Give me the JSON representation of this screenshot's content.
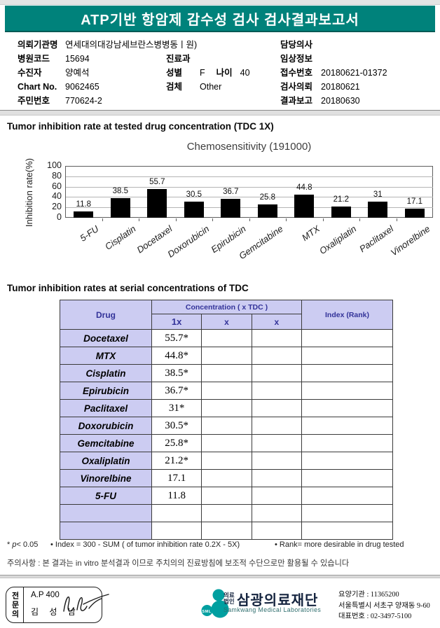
{
  "header": {
    "title": "ATP기반 항암제 감수성 검사 검사결과보고서"
  },
  "patient": {
    "left": [
      {
        "label": "의뢰기관명",
        "value": "연세대의대강남세브란스병병동ㅣ원)"
      },
      {
        "label": "병원코드",
        "value": "15694"
      },
      {
        "label": "수진자",
        "value": "양예석"
      },
      {
        "label": "Chart No.",
        "value": "9062465"
      },
      {
        "label": "주민번호",
        "value": "770624-2"
      }
    ],
    "middle": [
      {
        "label": "진료과",
        "value": ""
      },
      {
        "label": "성별",
        "value": "F",
        "label2": "나이",
        "value2": "40"
      },
      {
        "label": "검체",
        "value": "Other"
      }
    ],
    "right": [
      {
        "label": "담당의사",
        "value": ""
      },
      {
        "label": "임상정보",
        "value": ""
      },
      {
        "label": "접수번호",
        "value": "20180621-01372"
      },
      {
        "label": "검사의뢰",
        "value": "20180621"
      },
      {
        "label": "결과보고",
        "value": "20180630"
      }
    ]
  },
  "section1": {
    "title": "Tumor inhibition rate at tested drug concentration (TDC 1X)"
  },
  "section2": {
    "title": "Tumor inhibition rates at serial concentrations of TDC"
  },
  "chart_data": {
    "type": "bar",
    "title": "Chemosensitivity (191000)",
    "ylabel": "Inhibition rate(%)",
    "xlabel": "",
    "categories": [
      "5-FU",
      "Cisplatin",
      "Docetaxel",
      "Doxorubicin",
      "Epirubicin",
      "Gemcitabine",
      "MTX",
      "Oxaliplatin",
      "Paclitaxel",
      "Vinorelbine"
    ],
    "values": [
      11.8,
      38.5,
      55.7,
      30.5,
      36.7,
      25.8,
      44.8,
      21.2,
      31,
      17.1
    ],
    "ylim": [
      0,
      100
    ],
    "yticks": [
      0,
      20,
      40,
      60,
      80,
      100
    ],
    "grid": true,
    "legend": false,
    "bar_color": "#000000"
  },
  "table": {
    "col_drug": "Drug",
    "col_concentration": "Concentration ( x TDC )",
    "col_index": "Index (Rank)",
    "sub_cols": [
      "1x",
      "x",
      "x"
    ],
    "rows": [
      {
        "drug": "Docetaxel",
        "c1": "55.7*",
        "c2": "",
        "c3": "",
        "index": ""
      },
      {
        "drug": "MTX",
        "c1": "44.8*",
        "c2": "",
        "c3": "",
        "index": ""
      },
      {
        "drug": "Cisplatin",
        "c1": "38.5*",
        "c2": "",
        "c3": "",
        "index": ""
      },
      {
        "drug": "Epirubicin",
        "c1": "36.7*",
        "c2": "",
        "c3": "",
        "index": ""
      },
      {
        "drug": "Paclitaxel",
        "c1": "31*",
        "c2": "",
        "c3": "",
        "index": ""
      },
      {
        "drug": "Doxorubicin",
        "c1": "30.5*",
        "c2": "",
        "c3": "",
        "index": ""
      },
      {
        "drug": "Gemcitabine",
        "c1": "25.8*",
        "c2": "",
        "c3": "",
        "index": ""
      },
      {
        "drug": "Oxaliplatin",
        "c1": "21.2*",
        "c2": "",
        "c3": "",
        "index": ""
      },
      {
        "drug": "Vinorelbine",
        "c1": "17.1",
        "c2": "",
        "c3": "",
        "index": ""
      },
      {
        "drug": "5-FU",
        "c1": "11.8",
        "c2": "",
        "c3": "",
        "index": ""
      },
      {
        "drug": "",
        "c1": "",
        "c2": "",
        "c3": "",
        "index": ""
      },
      {
        "drug": "",
        "c1": "",
        "c2": "",
        "c3": "",
        "index": ""
      }
    ]
  },
  "footnotes": {
    "p_prefix": "* ",
    "p_italic": "p",
    "p_suffix": "< 0.05",
    "index_note": "• Index = 300 - SUM ( of tumor inhibition rate 0.2X  -  5X)",
    "rank_note": "• Rank= more desirable in drug tested",
    "caution": "주의사항 : 본 결과는 in vitro 분석결과 이므로 주치의의 진료방침에 보조적 수단으로만 활용될 수 있습니다"
  },
  "footer": {
    "specialist_box": {
      "side_label": "전문의",
      "line1": "A.P 400",
      "line2": "김 성 남"
    },
    "logo_text": "SML",
    "org": {
      "prefix": "의료\n법인",
      "name": "삼광의료재단",
      "eng": "Samkwang Medical Laboratories"
    },
    "info_lines": [
      "요양기관 : 11365200",
      "서울특별시 서초구 양재동 9-60",
      "대표번호 : 02-3497-5100"
    ]
  },
  "colors": {
    "header_teal": "#00827b",
    "table_header_bg": "#ccccf2",
    "table_header_text": "#333399",
    "logo_teal": "#009fa0",
    "bar": "#000000"
  }
}
